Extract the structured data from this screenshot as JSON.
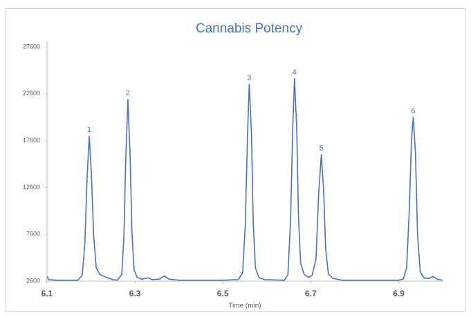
{
  "chart_data": {
    "type": "line",
    "title": "Cannabis Potency",
    "x_label": "Time (min)",
    "x": [
      6.1,
      6.104,
      6.12,
      6.17,
      6.18,
      6.186,
      6.191,
      6.196,
      6.201,
      6.206,
      6.212,
      6.22,
      6.235,
      6.25,
      6.26,
      6.27,
      6.275,
      6.279,
      6.284,
      6.289,
      6.293,
      6.298,
      6.305,
      6.315,
      6.33,
      6.34,
      6.355,
      6.367,
      6.378,
      6.4,
      6.5,
      6.535,
      6.545,
      6.551,
      6.556,
      6.56,
      6.565,
      6.569,
      6.574,
      6.582,
      6.595,
      6.64,
      6.648,
      6.654,
      6.659,
      6.663,
      6.668,
      6.672,
      6.677,
      6.685,
      6.695,
      6.703,
      6.712,
      6.718,
      6.724,
      6.729,
      6.734,
      6.74,
      6.75,
      6.77,
      6.9,
      6.91,
      6.918,
      6.924,
      6.929,
      6.933,
      6.938,
      6.943,
      6.949,
      6.958,
      6.97,
      6.978,
      6.988,
      7.0
    ],
    "series": [
      {
        "color": "#4472c4",
        "values": [
          3100,
          2750,
          2700,
          2700,
          3200,
          6500,
          13500,
          18087,
          14000,
          7500,
          4000,
          3300,
          3000,
          2750,
          2700,
          3300,
          7500,
          15500,
          21995,
          16000,
          8000,
          3800,
          3000,
          2800,
          2950,
          2750,
          2800,
          3150,
          2800,
          2700,
          2700,
          2750,
          3500,
          8500,
          18000,
          23618,
          18500,
          9000,
          4000,
          3000,
          2750,
          2700,
          3300,
          9000,
          19000,
          24207,
          19000,
          9500,
          4500,
          3300,
          3000,
          3200,
          5000,
          12000,
          16100,
          12500,
          6000,
          3400,
          2900,
          2700,
          2700,
          2800,
          4000,
          10000,
          17500,
          20078,
          16500,
          7500,
          3600,
          2900,
          2900,
          3100,
          2800,
          2700
        ]
      }
    ],
    "annotations": [
      {
        "text": "1",
        "x": 6.196,
        "y": 18087
      },
      {
        "text": "2",
        "x": 6.284,
        "y": 21995
      },
      {
        "text": "3",
        "x": 6.56,
        "y": 23618
      },
      {
        "text": "4",
        "x": 6.663,
        "y": 24207
      },
      {
        "text": "5",
        "x": 6.724,
        "y": 16100
      },
      {
        "text": "6",
        "x": 6.933,
        "y": 20078
      }
    ],
    "xlim": [
      6.1,
      7.0
    ],
    "xticks": [
      6.1,
      6.3,
      6.5,
      6.7,
      6.9
    ],
    "ylim": [
      2600,
      27600
    ],
    "yticks": [
      2600,
      7600,
      12600,
      17600,
      22600,
      27600
    ],
    "grid": false
  }
}
